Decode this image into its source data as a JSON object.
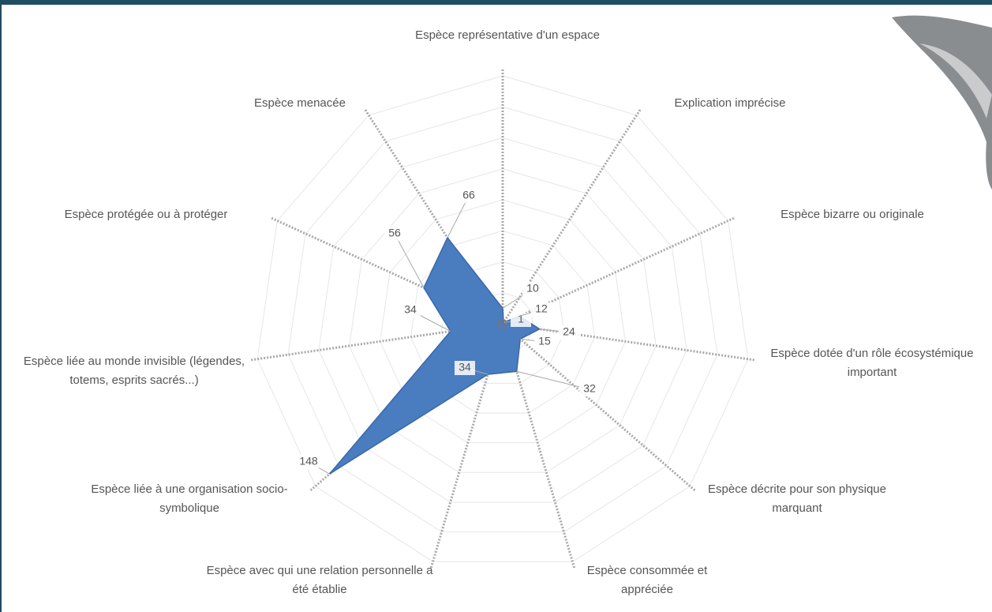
{
  "chart_data": {
    "type": "radar",
    "categories": [
      "Espèce représentative d'un espace",
      "Explication imprécise",
      "Espèce bizarre ou originale",
      "Espèce dotée d'un rôle écosystémique important",
      "Espèce décrite pour son physique marquant",
      "Espèce consommée et appréciée",
      "Espèce avec qui une relation personnelle a été établie",
      "Espèce liée à une organisation socio-symbolique",
      "Espèce liée au monde invisible (légendes, totems, esprits sacrés...)",
      "Espèce protégée ou à protéger",
      "Espèce menacée"
    ],
    "values": [
      10,
      1,
      12,
      24,
      15,
      32,
      34,
      148,
      34,
      56,
      66
    ],
    "color": "#4a7cc0",
    "rlim": [
      0,
      160
    ],
    "rticks": [
      20,
      40,
      60,
      80,
      100,
      120,
      140,
      160
    ],
    "grid": true
  }
}
